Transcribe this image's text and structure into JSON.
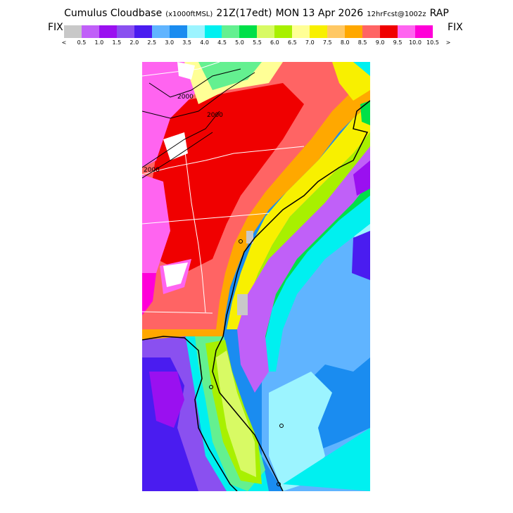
{
  "header": {
    "title": "Cumulus Cloudbase",
    "units": "(x1000ftMSL)",
    "valid_time": "21Z(17edt)",
    "date": "MON 13 Apr 2026",
    "forecast": "12hrFcst@1002z",
    "model": "RAP"
  },
  "legend": {
    "left_label": "FIX",
    "right_label": "FIX",
    "under_marker": "<",
    "over_marker": ">",
    "ticks": [
      "0.5",
      "1.0",
      "1.5",
      "2.0",
      "2.5",
      "3.0",
      "3.5",
      "4.0",
      "4.5",
      "5.0",
      "5.5",
      "6.0",
      "6.5",
      "7.0",
      "7.5",
      "8.0",
      "8.5",
      "9.0",
      "9.5",
      "10.0",
      "10.5"
    ],
    "colors": [
      "#c8c8c8",
      "#c060f8",
      "#9a10f0",
      "#8a50f0",
      "#4a1cf0",
      "#60b4ff",
      "#1a8cf0",
      "#9cf4ff",
      "#00f0f0",
      "#64f090",
      "#00e048",
      "#d8fa64",
      "#a8f000",
      "#ffff96",
      "#f8f000",
      "#ffc864",
      "#ffa800",
      "#ff6464",
      "#f00000",
      "#ff64f0",
      "#ff00d8"
    ]
  },
  "map": {
    "contour_labels": [
      "2000",
      "2000",
      "2000"
    ],
    "field": "cumulus cloudbase height"
  }
}
